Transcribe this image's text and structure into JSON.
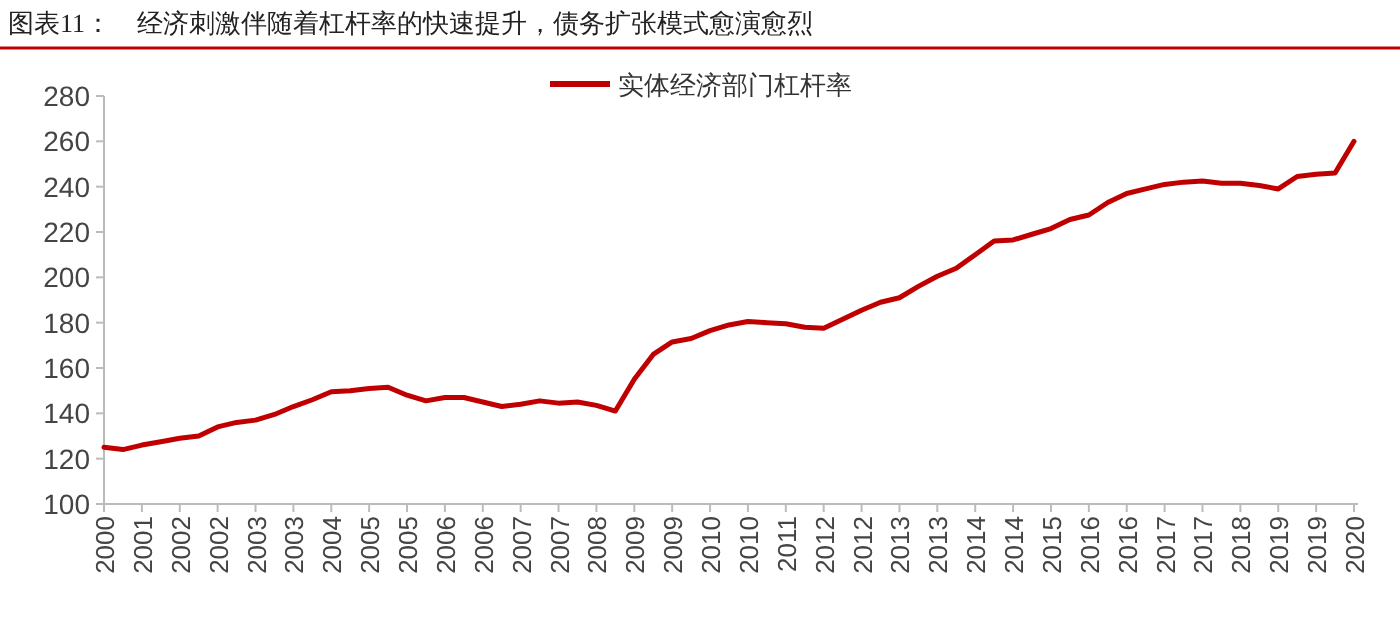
{
  "chart_data": {
    "type": "line",
    "title": "图表11：    经济刺激伴随着杠杆率的快速提升，债务扩张模式愈演愈烈",
    "categories": [
      "2000",
      null,
      "2001",
      null,
      "2002",
      null,
      "2002",
      null,
      "2003",
      null,
      "2003",
      null,
      "2004",
      null,
      "2005",
      null,
      "2005",
      null,
      "2006",
      null,
      "2006",
      null,
      "2007",
      null,
      "2007",
      null,
      "2008",
      null,
      "2009",
      null,
      "2009",
      null,
      "2010",
      null,
      "2010",
      null,
      "2011",
      null,
      "2012",
      null,
      "2012",
      null,
      "2013",
      null,
      "2013",
      null,
      "2014",
      null,
      "2014",
      null,
      "2015",
      null,
      "2016",
      null,
      "2016",
      null,
      "2017",
      null,
      "2017",
      null,
      "2018",
      null,
      "2019",
      null,
      "2019",
      null,
      "2020"
    ],
    "series": [
      {
        "name": "实体经济部门杠杆率",
        "color": "#c00000",
        "values": [
          125,
          124,
          126,
          127.5,
          129,
          130,
          134,
          136,
          137,
          139.5,
          143,
          146,
          149.5,
          150,
          151,
          151.5,
          148,
          145.5,
          147,
          147,
          145,
          143,
          144,
          145.5,
          144.5,
          145,
          143.5,
          141,
          155,
          166,
          171.5,
          173,
          176.5,
          179,
          180.5,
          180,
          179.5,
          178,
          177.5,
          181.5,
          185.5,
          189,
          191,
          196,
          200.5,
          204,
          210,
          216,
          216.5,
          219,
          221.5,
          225.5,
          227.5,
          233,
          237,
          239,
          241,
          242,
          242.5,
          241.5,
          241.5,
          240.5,
          239,
          244.5,
          245.5,
          246,
          260
        ]
      }
    ],
    "ylim": [
      100,
      280
    ],
    "yticks": [
      100,
      120,
      140,
      160,
      180,
      200,
      220,
      240,
      260,
      280
    ],
    "grid": false,
    "legend": "top",
    "marker": "none",
    "line_style": "solid"
  }
}
